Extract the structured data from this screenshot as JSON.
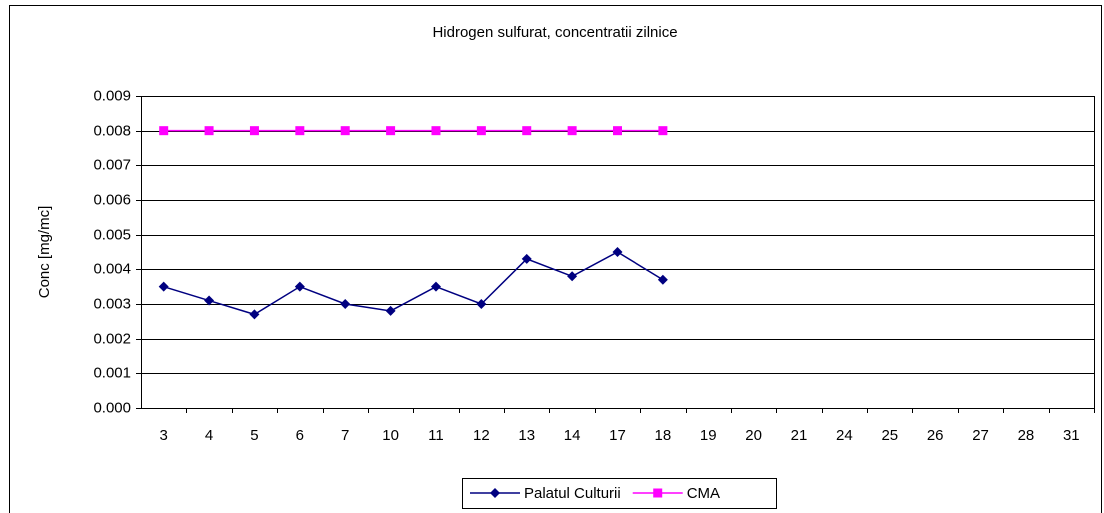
{
  "chart_data": {
    "type": "line",
    "title": "Hidrogen sulfurat, concentratii zilnice",
    "y_label": "Conc [mg/mc]",
    "categories": [
      "3",
      "4",
      "5",
      "6",
      "7",
      "10",
      "11",
      "12",
      "13",
      "14",
      "17",
      "18",
      "19",
      "20",
      "21",
      "24",
      "25",
      "26",
      "27",
      "28",
      "31"
    ],
    "series": [
      {
        "name": "Palatul Culturii",
        "color": "#000080",
        "marker": "diamond",
        "values": [
          0.0035,
          0.0031,
          0.0027,
          0.0035,
          0.003,
          0.0028,
          0.0035,
          0.003,
          0.0043,
          0.0038,
          0.0045,
          0.0037,
          null,
          null,
          null,
          null,
          null,
          null,
          null,
          null,
          null
        ]
      },
      {
        "name": "CMA",
        "color": "#ff00ff",
        "marker": "square",
        "values": [
          0.008,
          0.008,
          0.008,
          0.008,
          0.008,
          0.008,
          0.008,
          0.008,
          0.008,
          0.008,
          0.008,
          0.008,
          null,
          null,
          null,
          null,
          null,
          null,
          null,
          null,
          null
        ]
      }
    ],
    "ylim": [
      0,
      0.009
    ],
    "yticks": [
      {
        "value": 0,
        "label": "0.000"
      },
      {
        "value": 0.001,
        "label": "0.001"
      },
      {
        "value": 0.002,
        "label": "0.002"
      },
      {
        "value": 0.003,
        "label": "0.003"
      },
      {
        "value": 0.004,
        "label": "0.004"
      },
      {
        "value": 0.005,
        "label": "0.005"
      },
      {
        "value": 0.006,
        "label": "0.006"
      },
      {
        "value": 0.007,
        "label": "0.007"
      },
      {
        "value": 0.008,
        "label": "0.008"
      },
      {
        "value": 0.009,
        "label": "0.009"
      }
    ],
    "grid": true,
    "legend": "bottom"
  }
}
